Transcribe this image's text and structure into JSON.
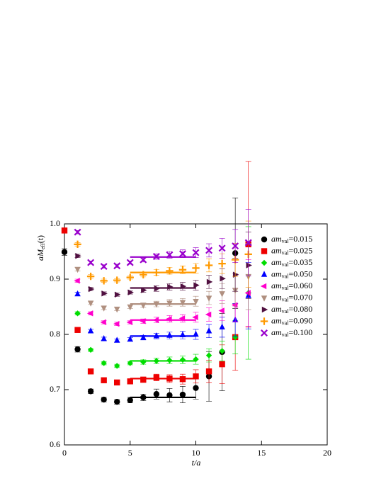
{
  "chart_data": {
    "type": "scatter",
    "xlabel": "t/a",
    "ylabel": {
      "main": "aM",
      "sub": "eff",
      "tail": "(t)"
    },
    "legend_symbol": "am",
    "legend_subscript": "val",
    "xlim": [
      0,
      20
    ],
    "xticks": [
      0,
      5,
      10,
      15,
      20
    ],
    "ylim": [
      0.6,
      1.0
    ],
    "yticks": [
      0.6,
      0.7,
      0.8,
      0.9,
      {
        "value": 1,
        "label": "1.0"
      }
    ],
    "legend": "upper right",
    "series": [
      {
        "name": "=0.015",
        "color": "#000000",
        "marker": "circle",
        "x": [
          0,
          1,
          2,
          3,
          4,
          5,
          6,
          7,
          8,
          9,
          10,
          11,
          12,
          13
        ],
        "values": [
          0.949,
          0.773,
          0.697,
          0.682,
          0.678,
          0.681,
          0.686,
          0.692,
          0.69,
          0.691,
          0.703,
          0.724,
          0.768,
          0.947
        ],
        "errors": [
          0.006,
          0.005,
          0.004,
          0.004,
          0.004,
          0.005,
          0.006,
          0.009,
          0.012,
          0.015,
          0.02,
          0.045,
          0.07,
          0.1
        ],
        "fit_range": [
          5,
          10
        ],
        "fit_value": 0.686
      },
      {
        "name": "=0.025",
        "color": "#ee0000",
        "marker": "square",
        "x": [
          0,
          1,
          2,
          3,
          4,
          5,
          6,
          7,
          8,
          9,
          10,
          11,
          12,
          13,
          14
        ],
        "values": [
          0.988,
          0.808,
          0.733,
          0.717,
          0.713,
          0.715,
          0.718,
          0.722,
          0.72,
          0.719,
          0.724,
          0.733,
          0.746,
          0.795,
          0.963
        ],
        "errors": [
          0.004,
          0.004,
          0.003,
          0.003,
          0.003,
          0.004,
          0.005,
          0.006,
          0.007,
          0.009,
          0.012,
          0.02,
          0.035,
          0.06,
          0.15
        ],
        "fit_range": [
          5,
          10
        ],
        "fit_value": 0.72
      },
      {
        "name": "=0.035",
        "color": "#00dd00",
        "marker": "diamond",
        "x": [
          1,
          2,
          3,
          4,
          5,
          6,
          7,
          8,
          9,
          10,
          11,
          12,
          13,
          14
        ],
        "values": [
          0.838,
          0.772,
          0.748,
          0.743,
          0.748,
          0.75,
          0.752,
          0.753,
          0.754,
          0.755,
          0.762,
          0.77,
          0.795,
          0.875
        ],
        "errors": [
          0.003,
          0.003,
          0.003,
          0.003,
          0.003,
          0.004,
          0.005,
          0.006,
          0.007,
          0.009,
          0.012,
          0.018,
          0.03,
          0.12
        ],
        "fit_range": [
          5,
          10
        ],
        "fit_value": 0.752
      },
      {
        "name": "=0.050",
        "color": "#0000ff",
        "marker": "triangle-up",
        "x": [
          1,
          2,
          3,
          4,
          5,
          6,
          7,
          8,
          9,
          10,
          11,
          12,
          13,
          14
        ],
        "values": [
          0.873,
          0.806,
          0.792,
          0.789,
          0.791,
          0.794,
          0.797,
          0.798,
          0.799,
          0.8,
          0.806,
          0.813,
          0.826,
          0.87
        ],
        "errors": [
          0.003,
          0.003,
          0.003,
          0.003,
          0.003,
          0.004,
          0.005,
          0.006,
          0.007,
          0.009,
          0.012,
          0.018,
          0.03,
          0.06
        ],
        "fit_range": [
          5,
          10
        ],
        "fit_value": 0.797
      },
      {
        "name": "=0.060",
        "color": "#ff00cc",
        "marker": "triangle-left",
        "x": [
          1,
          2,
          3,
          4,
          5,
          6,
          7,
          8,
          9,
          10,
          11,
          12,
          13,
          14
        ],
        "values": [
          0.897,
          0.838,
          0.822,
          0.819,
          0.822,
          0.824,
          0.826,
          0.828,
          0.829,
          0.831,
          0.836,
          0.843,
          0.853,
          0.875
        ],
        "errors": [
          0.003,
          0.003,
          0.003,
          0.003,
          0.003,
          0.004,
          0.005,
          0.006,
          0.007,
          0.009,
          0.012,
          0.018,
          0.03,
          0.06
        ],
        "fit_range": [
          5,
          10
        ],
        "fit_value": 0.826
      },
      {
        "name": "=0.070",
        "color": "#b09080",
        "marker": "triangle-down",
        "x": [
          1,
          2,
          3,
          4,
          5,
          6,
          7,
          8,
          9,
          10,
          11,
          12,
          13,
          14
        ],
        "values": [
          0.918,
          0.857,
          0.848,
          0.846,
          0.85,
          0.853,
          0.855,
          0.857,
          0.858,
          0.86,
          0.866,
          0.874,
          0.88,
          0.905
        ],
        "errors": [
          0.003,
          0.003,
          0.003,
          0.003,
          0.003,
          0.004,
          0.005,
          0.006,
          0.007,
          0.009,
          0.012,
          0.018,
          0.03,
          0.06
        ],
        "fit_range": [
          5,
          10
        ],
        "fit_value": 0.855
      },
      {
        "name": "=0.080",
        "color": "#501040",
        "marker": "triangle-right",
        "x": [
          1,
          2,
          3,
          4,
          5,
          6,
          7,
          8,
          9,
          10,
          11,
          12,
          13,
          14
        ],
        "values": [
          0.942,
          0.882,
          0.874,
          0.872,
          0.876,
          0.88,
          0.883,
          0.886,
          0.887,
          0.889,
          0.895,
          0.901,
          0.908,
          0.925
        ],
        "errors": [
          0.003,
          0.003,
          0.003,
          0.003,
          0.003,
          0.004,
          0.005,
          0.006,
          0.007,
          0.009,
          0.012,
          0.018,
          0.03,
          0.06
        ],
        "fit_range": [
          5,
          10
        ],
        "fit_value": 0.884
      },
      {
        "name": "=0.090",
        "color": "#ff9900",
        "marker": "plus",
        "x": [
          1,
          2,
          3,
          4,
          5,
          6,
          7,
          8,
          9,
          10,
          11,
          12,
          13,
          14
        ],
        "values": [
          0.963,
          0.905,
          0.897,
          0.898,
          0.903,
          0.908,
          0.912,
          0.915,
          0.917,
          0.92,
          0.925,
          0.928,
          0.935,
          0.945
        ],
        "errors": [
          0.003,
          0.003,
          0.003,
          0.003,
          0.003,
          0.004,
          0.005,
          0.006,
          0.007,
          0.009,
          0.012,
          0.018,
          0.03,
          0.06
        ],
        "fit_range": [
          5,
          10
        ],
        "fit_value": 0.912
      },
      {
        "name": "=0.100",
        "color": "#9900cc",
        "marker": "cross",
        "x": [
          1,
          2,
          3,
          4,
          5,
          6,
          7,
          8,
          9,
          10,
          11,
          12,
          13,
          14
        ],
        "values": [
          0.985,
          0.93,
          0.923,
          0.924,
          0.93,
          0.935,
          0.941,
          0.944,
          0.946,
          0.948,
          0.952,
          0.956,
          0.96,
          0.966
        ],
        "errors": [
          0.003,
          0.003,
          0.003,
          0.003,
          0.003,
          0.004,
          0.005,
          0.006,
          0.007,
          0.009,
          0.012,
          0.018,
          0.03,
          0.06
        ],
        "fit_range": [
          5,
          10
        ],
        "fit_value": 0.94
      }
    ]
  }
}
